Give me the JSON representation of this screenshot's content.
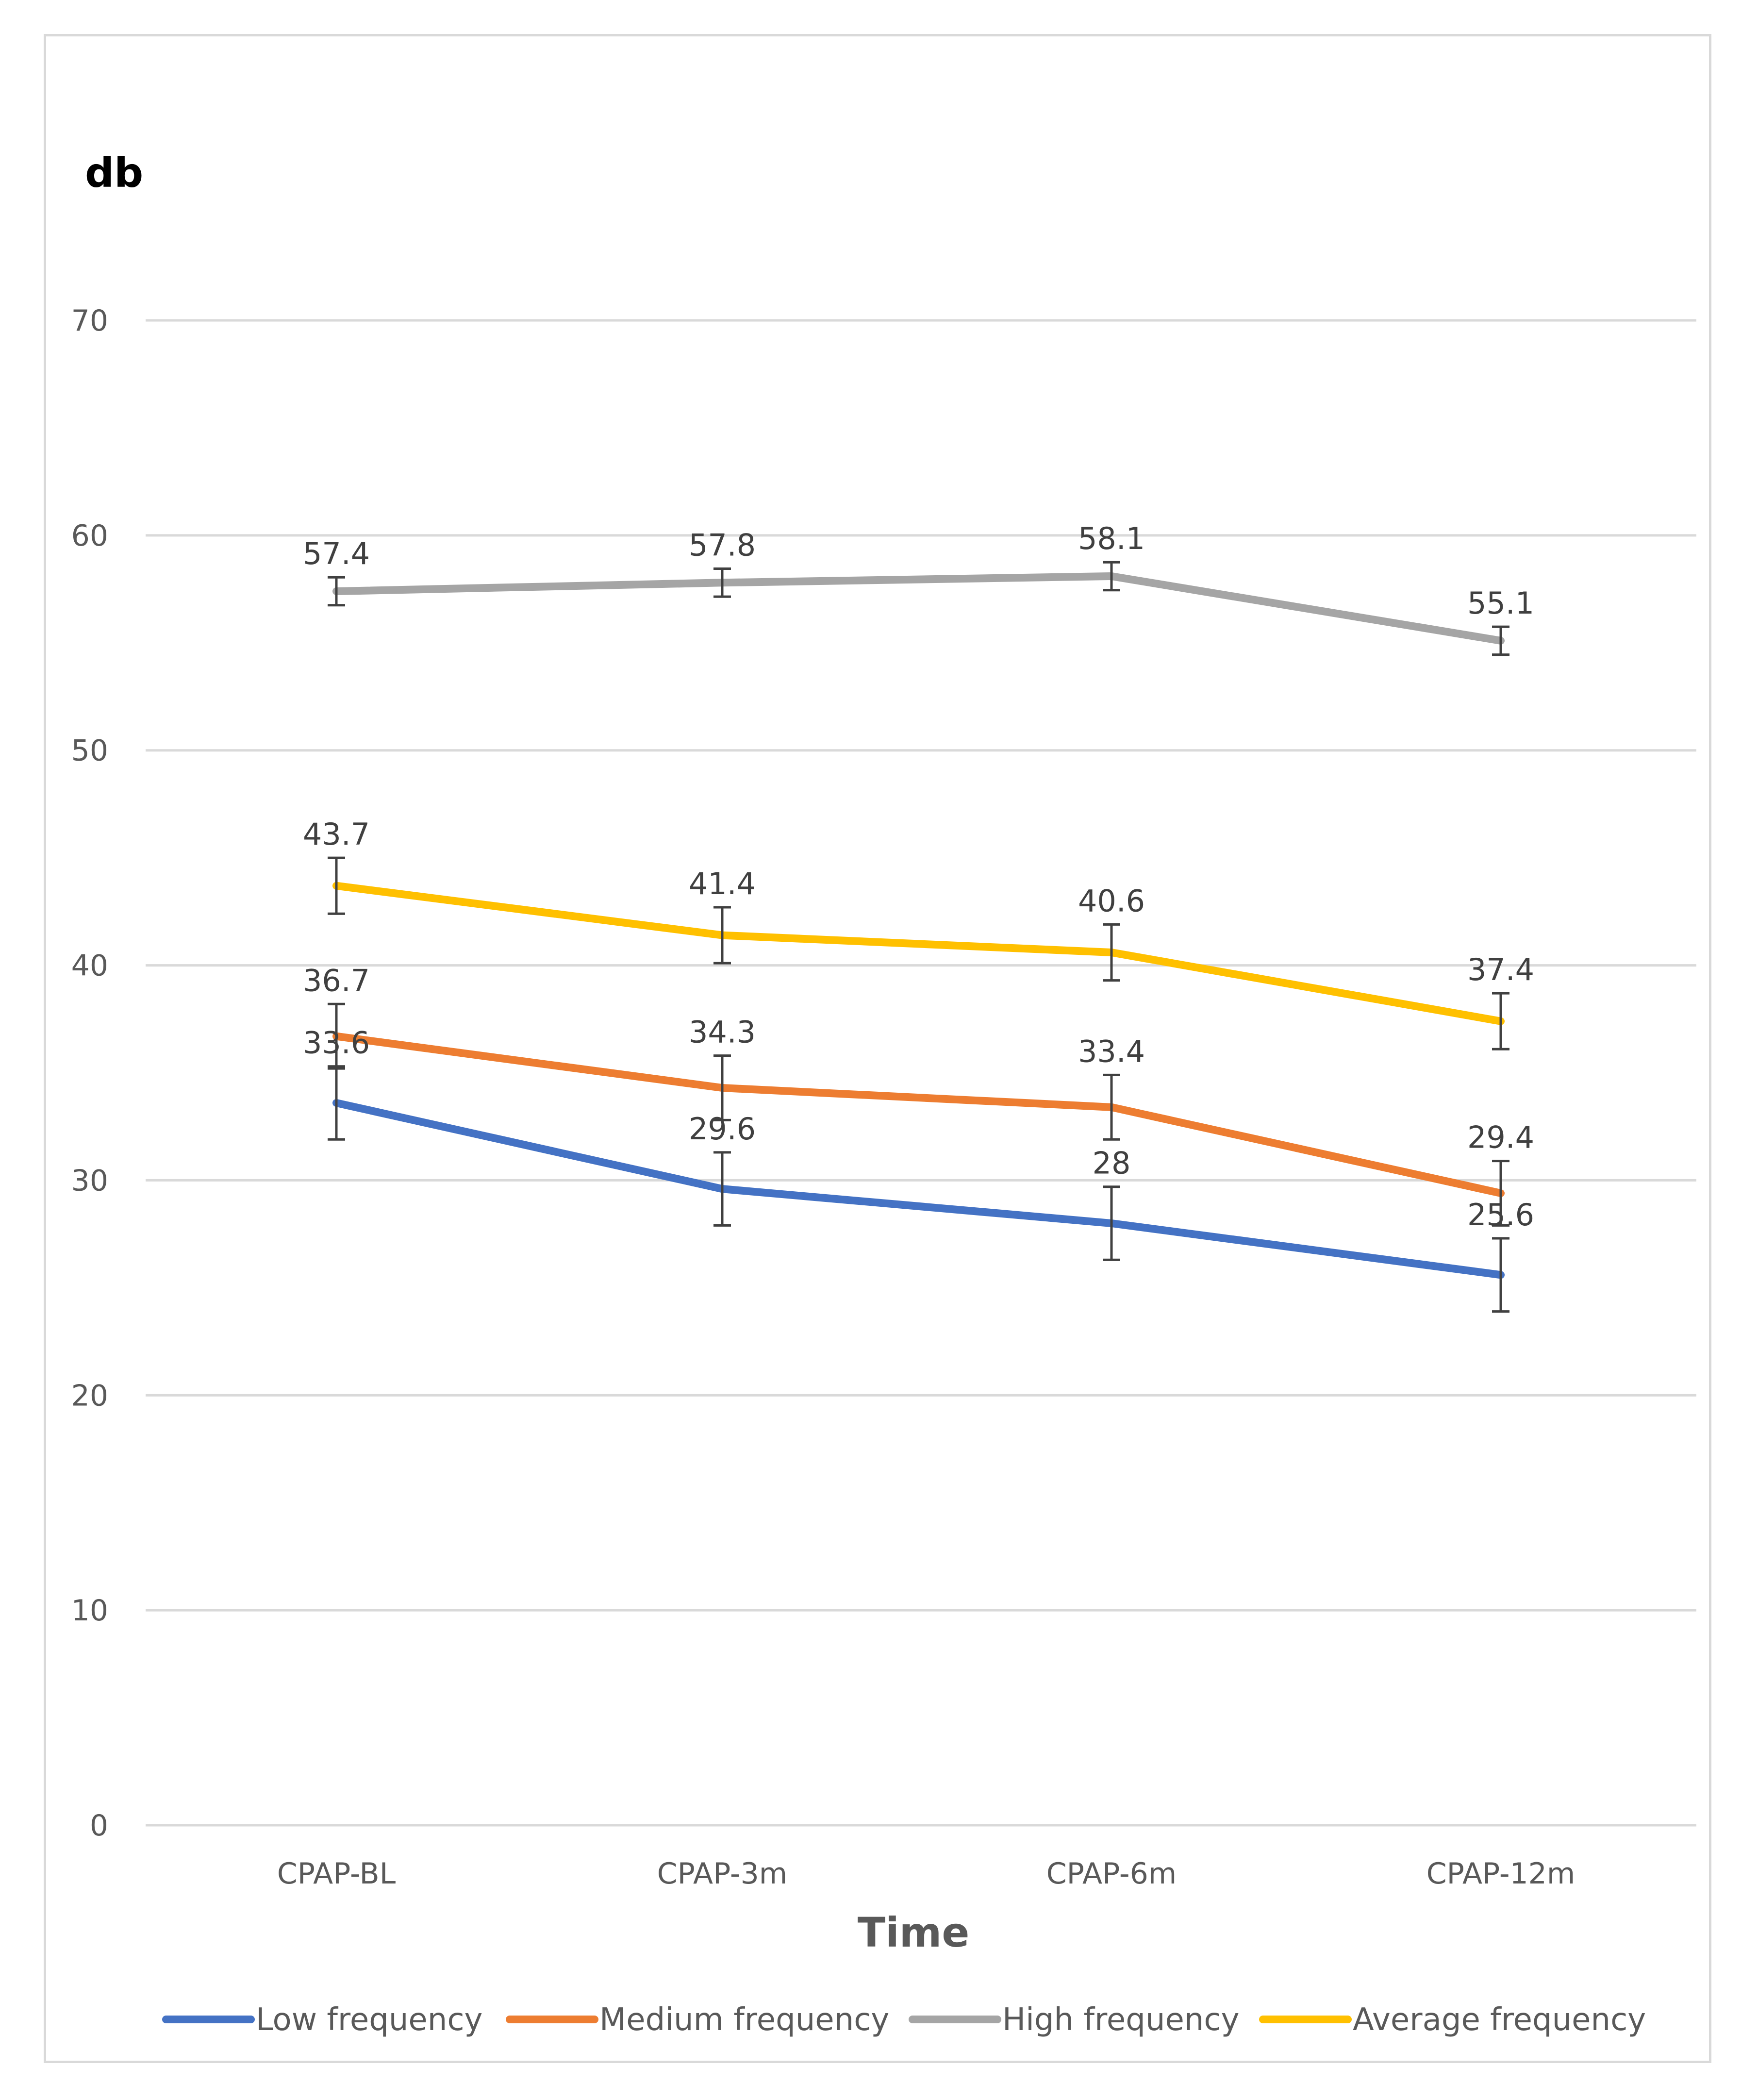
{
  "chart_data": {
    "type": "line",
    "title": "",
    "ylabel": "db",
    "xlabel": "Time",
    "categories": [
      "CPAP-BL",
      "CPAP-3m",
      "CPAP-6m",
      "CPAP-12m"
    ],
    "ylim": [
      0,
      70
    ],
    "yticks": [
      0,
      10,
      20,
      30,
      40,
      50,
      60,
      70
    ],
    "grid": true,
    "legend_position": "bottom",
    "series": [
      {
        "name": "Low frequency",
        "color": "#4472C4",
        "values": [
          33.6,
          29.6,
          28,
          25.6
        ],
        "labels": [
          "33.6",
          "29.6",
          "28",
          "25.6"
        ],
        "error": [
          1.7,
          1.7,
          1.7,
          1.7
        ]
      },
      {
        "name": "Medium frequency",
        "color": "#ED7D31",
        "values": [
          36.7,
          34.3,
          33.4,
          29.4
        ],
        "labels": [
          "36.7",
          "34.3",
          "33.4",
          "29.4"
        ],
        "error": [
          1.5,
          1.5,
          1.5,
          1.5
        ]
      },
      {
        "name": "High frequency",
        "color": "#A5A5A5",
        "values": [
          57.4,
          57.8,
          58.1,
          55.1
        ],
        "labels": [
          "57.4",
          "57.8",
          "58.1",
          "55.1"
        ],
        "error": [
          0.65,
          0.65,
          0.65,
          0.65
        ]
      },
      {
        "name": "Average frequency",
        "color": "#FFC000",
        "values": [
          43.7,
          41.4,
          40.6,
          37.4
        ],
        "labels": [
          "43.7",
          "41.4",
          "40.6",
          "37.4"
        ],
        "error": [
          1.3,
          1.3,
          1.3,
          1.3
        ]
      }
    ]
  }
}
